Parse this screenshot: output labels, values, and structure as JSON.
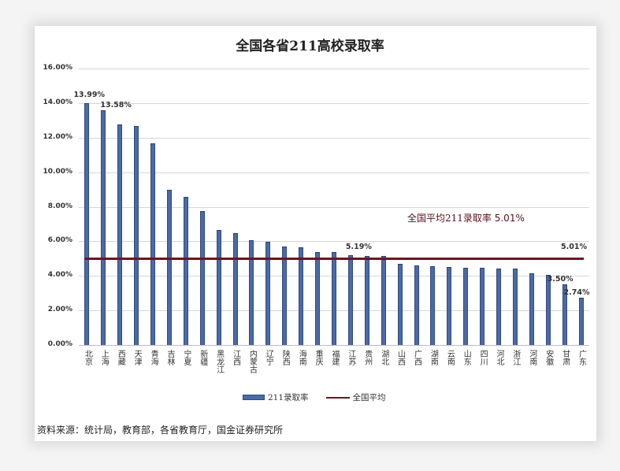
{
  "chart_data": {
    "type": "bar",
    "title": "全国各省211高校录取率",
    "xlabel": "",
    "ylabel": "",
    "ylim": [
      0,
      16
    ],
    "yticks": [
      "0.00%",
      "2.00%",
      "4.00%",
      "6.00%",
      "8.00%",
      "10.00%",
      "12.00%",
      "14.00%",
      "16.00%"
    ],
    "grid": true,
    "legend_position": "bottom",
    "categories": [
      "北京",
      "上海",
      "西藏",
      "天津",
      "青海",
      "吉林",
      "宁夏",
      "新疆",
      "黑龙江",
      "江西",
      "内蒙古",
      "辽宁",
      "陕西",
      "海南",
      "重庆",
      "福建",
      "江苏",
      "贵州",
      "湖北",
      "山西",
      "广西",
      "湖南",
      "云南",
      "山东",
      "四川",
      "河北",
      "浙江",
      "河南",
      "安徽",
      "甘肃",
      "广东"
    ],
    "series": [
      {
        "name": "211录取率",
        "type": "bar",
        "color": "#4a6aa8",
        "values": [
          13.99,
          13.58,
          12.76,
          12.67,
          11.67,
          8.98,
          8.57,
          7.75,
          6.65,
          6.47,
          6.06,
          5.97,
          5.7,
          5.65,
          5.38,
          5.36,
          5.19,
          5.14,
          5.13,
          4.69,
          4.6,
          4.56,
          4.51,
          4.47,
          4.46,
          4.42,
          4.41,
          4.15,
          4.06,
          3.5,
          2.74
        ]
      },
      {
        "name": "全国平均",
        "type": "line",
        "color": "#6b1620",
        "values": [
          5.01,
          5.01,
          5.01,
          5.01,
          5.01,
          5.01,
          5.01,
          5.01,
          5.01,
          5.01,
          5.01,
          5.01,
          5.01,
          5.01,
          5.01,
          5.01,
          5.01,
          5.01,
          5.01,
          5.01,
          5.01,
          5.01,
          5.01,
          5.01,
          5.01,
          5.01,
          5.01,
          5.01,
          5.01,
          5.01,
          5.01
        ]
      }
    ],
    "data_labels": [
      {
        "category": "北京",
        "text": "13.99%"
      },
      {
        "category": "上海",
        "text": "13.58%"
      },
      {
        "category": "江苏",
        "text": "5.19%"
      },
      {
        "category": "甘肃",
        "text": "3.50%"
      },
      {
        "category": "广东",
        "text": "2.74%"
      },
      {
        "category": "avg-line-end",
        "text": "5.01%"
      }
    ],
    "annotations": [
      {
        "text": "全国平均211录取率 5.01%"
      }
    ]
  },
  "annotation": {
    "avg_label": "全国平均211录取率",
    "avg_value": "5.01%"
  },
  "legend": {
    "bar_label": "211录取率",
    "line_label": "全国平均"
  },
  "source": "资料来源：统计局，教育部，各省教育厅，国金证券研究所"
}
